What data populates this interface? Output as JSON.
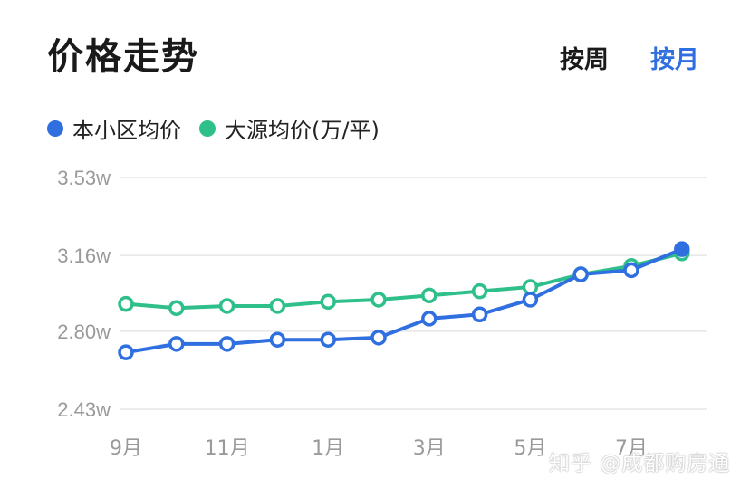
{
  "header": {
    "title": "价格走势",
    "tabs": [
      {
        "label": "按周",
        "active": false
      },
      {
        "label": "按月",
        "active": true
      }
    ]
  },
  "colors": {
    "community": "#2f6fe0",
    "district": "#2fbf8a",
    "active_tab": "#2f6fe0",
    "grid": "#e6e6e6",
    "axis_text": "#9a9a9a"
  },
  "chart_data": {
    "type": "line",
    "title": "价格走势",
    "xlabel": "",
    "ylabel": "",
    "x": [
      "9月",
      "10月",
      "11月",
      "12月",
      "1月",
      "2月",
      "3月",
      "4月",
      "5月",
      "6月",
      "7月",
      "8月"
    ],
    "x_tick_labels": [
      "9月",
      "11月",
      "1月",
      "3月",
      "5月",
      "7月"
    ],
    "y_tick_labels": [
      "3.53w",
      "3.16w",
      "2.80w",
      "2.43w"
    ],
    "y_ticks": [
      3.53,
      3.16,
      2.8,
      2.43
    ],
    "ylim": [
      2.43,
      3.53
    ],
    "grid": true,
    "legend_position": "top-left",
    "series": [
      {
        "name": "本小区均价",
        "color": "#2f6fe0",
        "values": [
          2.7,
          2.74,
          2.74,
          2.76,
          2.76,
          2.77,
          2.86,
          2.88,
          2.95,
          3.07,
          3.09,
          3.19
        ]
      },
      {
        "name": "大源均价(万/平)",
        "color": "#2fbf8a",
        "values": [
          2.93,
          2.91,
          2.92,
          2.92,
          2.94,
          2.95,
          2.97,
          2.99,
          3.01,
          3.07,
          3.11,
          3.17
        ]
      }
    ]
  },
  "watermark": "知乎 @成都购房通"
}
